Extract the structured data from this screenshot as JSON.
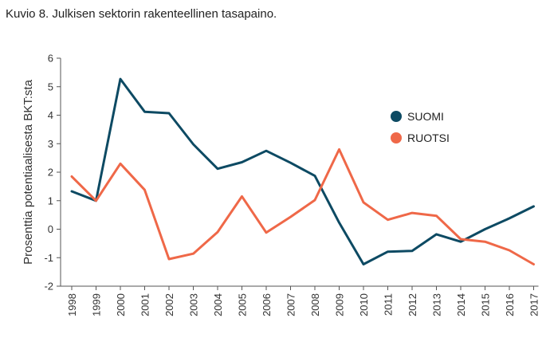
{
  "title": "Kuvio 8. Julkisen sektorin rakenteellinen tasapaino.",
  "chart_data": {
    "type": "line",
    "title": "Kuvio 8. Julkisen sektorin rakenteellinen tasapaino.",
    "xlabel": "",
    "ylabel": "Prosenttia potentiaalisesta BKT:sta",
    "ylim": [
      -2,
      6
    ],
    "yticks": [
      "6",
      "5",
      "4",
      "3",
      "2",
      "1",
      "0",
      "-1",
      "-2"
    ],
    "yticks_values": [
      6,
      5,
      4,
      3,
      2,
      1,
      0,
      -1,
      -2
    ],
    "categories": [
      "1998",
      "1999",
      "2000",
      "2001",
      "2002",
      "2003",
      "2004",
      "2005",
      "2006",
      "2007",
      "2008",
      "2009",
      "2010",
      "2011",
      "2012",
      "2013",
      "2014",
      "2015",
      "2016",
      "2017"
    ],
    "series": [
      {
        "name": "SUOMI",
        "color": "#0d4a63",
        "values": [
          1.33,
          1.0,
          5.27,
          4.12,
          4.07,
          2.98,
          2.12,
          2.35,
          2.75,
          2.33,
          1.87,
          0.23,
          -1.23,
          -0.79,
          -0.76,
          -0.18,
          -0.44,
          0.0,
          0.38,
          0.8
        ]
      },
      {
        "name": "RUOTSI",
        "color": "#ef6848",
        "values": [
          1.85,
          1.0,
          2.3,
          1.38,
          -1.05,
          -0.86,
          -0.1,
          1.15,
          -0.12,
          0.43,
          1.02,
          2.8,
          0.94,
          0.33,
          0.57,
          0.47,
          -0.35,
          -0.44,
          -0.74,
          -1.23
        ]
      }
    ],
    "legend_position": "right",
    "grid": false
  }
}
